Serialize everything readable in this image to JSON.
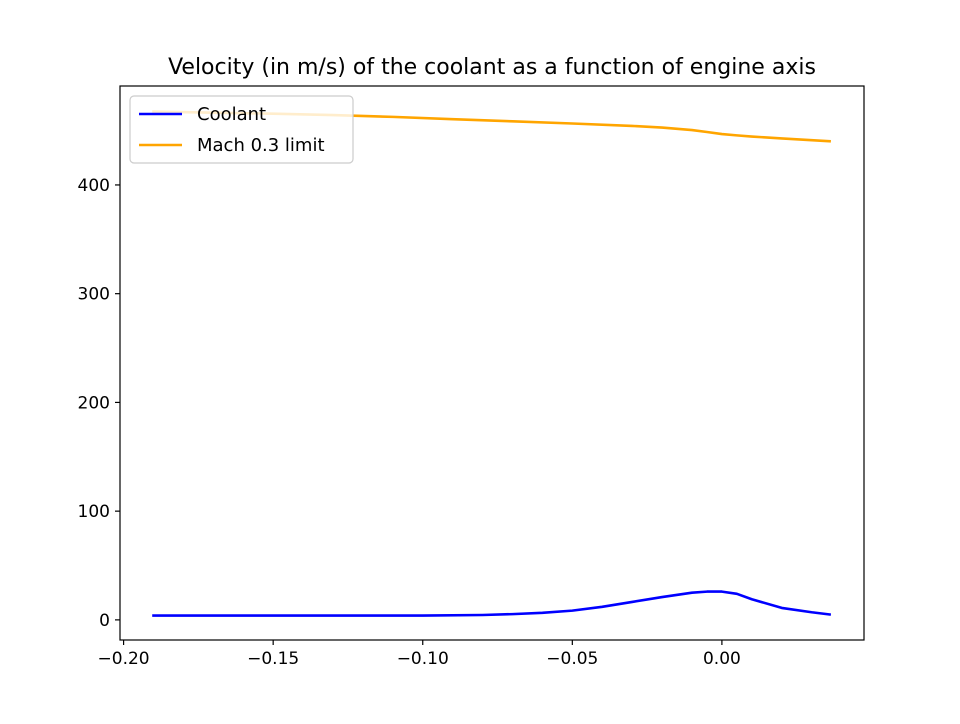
{
  "chart_data": {
    "type": "line",
    "title": "Velocity (in m/s) of the coolant as a function of engine axis",
    "xlabel": "",
    "ylabel": "",
    "xlim": [
      -0.2012,
      0.0475
    ],
    "ylim": [
      -18.5,
      491
    ],
    "x_ticks": [
      -0.2,
      -0.15,
      -0.1,
      -0.05,
      0.0
    ],
    "x_tick_labels": [
      "−0.20",
      "−0.15",
      "−0.10",
      "−0.05",
      "0.00"
    ],
    "y_ticks": [
      0,
      100,
      200,
      300,
      400
    ],
    "y_tick_labels": [
      "0",
      "100",
      "200",
      "300",
      "400"
    ],
    "grid": false,
    "legend_position": "upper left",
    "series": [
      {
        "name": "Coolant",
        "color": "#0000ff",
        "x": [
          -0.19,
          -0.15,
          -0.1,
          -0.08,
          -0.07,
          -0.06,
          -0.05,
          -0.04,
          -0.03,
          -0.02,
          -0.01,
          -0.005,
          0.0,
          0.005,
          0.01,
          0.02,
          0.03,
          0.036
        ],
        "y": [
          4,
          4,
          4,
          4.5,
          5.3,
          6.5,
          8.5,
          12,
          16.5,
          21,
          25,
          26,
          26,
          24,
          19,
          11,
          7,
          5
        ]
      },
      {
        "name": "Mach 0.3 limit",
        "color": "#ffa500",
        "x": [
          -0.19,
          -0.17,
          -0.15,
          -0.13,
          -0.11,
          -0.09,
          -0.07,
          -0.05,
          -0.03,
          -0.02,
          -0.01,
          -0.005,
          0.0,
          0.005,
          0.01,
          0.02,
          0.036
        ],
        "y": [
          467.5,
          466.5,
          465.5,
          464.3,
          462.6,
          460.5,
          458.5,
          456.5,
          454.3,
          452.8,
          450.5,
          448.7,
          446.8,
          445.6,
          444.5,
          442.8,
          440.2
        ]
      }
    ]
  }
}
